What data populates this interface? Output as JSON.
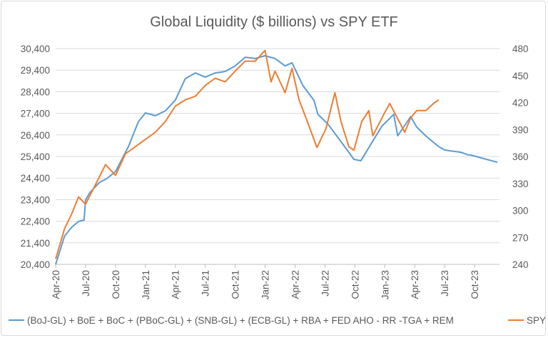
{
  "chart_data": {
    "type": "line",
    "title": "Global Liquidity ($ billions) vs SPY ETF",
    "x_unit": "months since Apr-20",
    "x_tick_labels": [
      "Apr-20",
      "Jul-20",
      "Oct-20",
      "Jan-21",
      "Apr-21",
      "Jul-21",
      "Oct-21",
      "Jan-22",
      "Apr-22",
      "Jul-22",
      "Oct-22",
      "Jan-23",
      "Apr-23",
      "Jul-23",
      "Oct-23"
    ],
    "xlim": [
      0,
      44.5
    ],
    "y_left": {
      "ylim": [
        20400,
        30400
      ],
      "tick_labels": [
        "30,400",
        "29,400",
        "28,400",
        "27,400",
        "26,400",
        "25,400",
        "24,400",
        "23,400",
        "22,400",
        "21,400",
        "20,400"
      ]
    },
    "y_right": {
      "ylim": [
        240,
        480
      ],
      "tick_labels": [
        "480",
        "450",
        "420",
        "390",
        "360",
        "330",
        "300",
        "270",
        "240"
      ]
    },
    "grid": true,
    "legend_position": "bottom",
    "series": [
      {
        "name": "(BoJ-GL) + BoE + BoC + (PBoC-GL) + (SNB-GL) + (ECB-GL) + RBA + FED AHO - RR -TGA + REM",
        "axis": "left",
        "color": "#5b9bd5",
        "x": [
          0,
          0.9,
          1.6,
          2.3,
          2.85,
          3.0,
          3.4,
          4.4,
          5.1,
          6.0,
          7.3,
          8.3,
          9.0,
          10.0,
          11.0,
          12.0,
          13.0,
          14.0,
          15.0,
          16.0,
          17.0,
          18.0,
          19.0,
          20.0,
          21.0,
          22.0,
          23.0,
          23.7,
          24.8,
          25.9,
          26.3,
          27.3,
          28.7,
          29.9,
          30.6,
          32.7,
          33.9,
          34.3,
          35.6,
          36.2,
          37.1,
          38.4,
          39.0,
          39.7,
          40.6,
          41.4,
          41.6,
          44.3
        ],
        "values": [
          20400,
          21720,
          22120,
          22390,
          22450,
          23380,
          23710,
          24200,
          24370,
          24700,
          25860,
          27020,
          27420,
          27290,
          27520,
          28010,
          29010,
          29270,
          29080,
          29270,
          29340,
          29600,
          30000,
          29940,
          30070,
          29940,
          29600,
          29740,
          28680,
          28000,
          27350,
          26900,
          26030,
          25270,
          25200,
          26800,
          27350,
          26360,
          27250,
          26760,
          26360,
          25860,
          25700,
          25650,
          25600,
          25470,
          25470,
          25130
        ]
      },
      {
        "name": "SPY",
        "axis": "right",
        "color": "#ed7d31",
        "x": [
          0,
          0.9,
          1.6,
          2.3,
          3.0,
          4.1,
          5.0,
          6.0,
          7.0,
          8.0,
          9.0,
          10.0,
          11.0,
          12.0,
          13.0,
          14.0,
          15.0,
          16.0,
          17.0,
          18.0,
          19.0,
          20.0,
          21.0,
          21.6,
          22.0,
          23.0,
          23.7,
          24.4,
          25.1,
          26.2,
          27.1,
          28.0,
          28.6,
          29.4,
          29.9,
          30.7,
          31.4,
          31.8,
          32.9,
          33.5,
          35.0,
          35.6,
          36.2,
          37.1,
          37.9,
          38.4
        ],
        "values": [
          246,
          280,
          296,
          315,
          307,
          331,
          351,
          339,
          363,
          371,
          379,
          387,
          399,
          416,
          423,
          427,
          439,
          447,
          443,
          455,
          466,
          466,
          478,
          443,
          455,
          431,
          458,
          423,
          403,
          370,
          391,
          431,
          399,
          371,
          367,
          399,
          411,
          383,
          407,
          419,
          387,
          403,
          411,
          411,
          419,
          423
        ]
      }
    ]
  }
}
